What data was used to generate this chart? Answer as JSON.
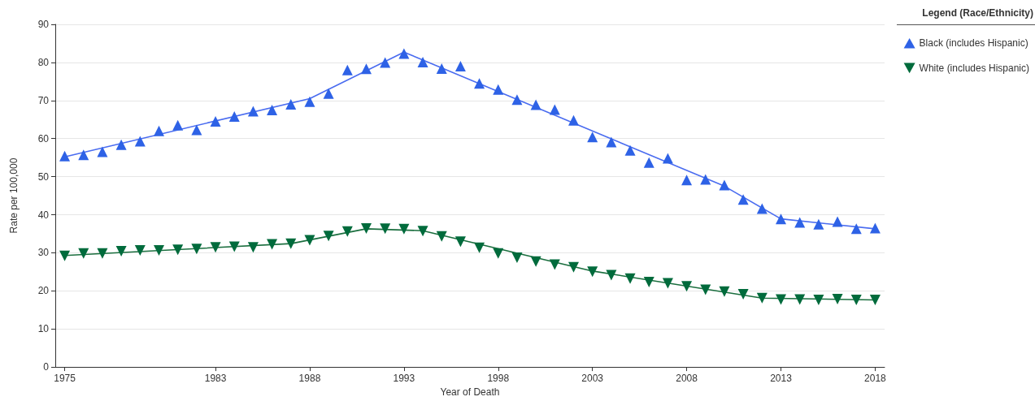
{
  "chart_data": {
    "type": "scatter",
    "xlabel": "Year of Death",
    "ylabel": "Rate per 100,000",
    "legend_title": "Legend (Race/Ethnicity)",
    "legend": "top right",
    "grid": "y",
    "x": [
      1975,
      1976,
      1977,
      1978,
      1979,
      1980,
      1981,
      1982,
      1983,
      1984,
      1985,
      1986,
      1987,
      1988,
      1989,
      1990,
      1991,
      1992,
      1993,
      1994,
      1995,
      1996,
      1997,
      1998,
      1999,
      2000,
      2001,
      2002,
      2003,
      2004,
      2005,
      2006,
      2007,
      2008,
      2009,
      2010,
      2011,
      2012,
      2013,
      2014,
      2015,
      2016,
      2017,
      2018
    ],
    "xlim": [
      1974.5,
      2018.5
    ],
    "xticks": [
      1975,
      1983,
      1988,
      1993,
      1998,
      2003,
      2008,
      2013,
      2018
    ],
    "ylim": [
      0,
      90
    ],
    "yticks": [
      0,
      10,
      20,
      30,
      40,
      50,
      60,
      70,
      80,
      90
    ],
    "series": [
      {
        "name": "Black (includes Hispanic)",
        "marker": "triangle",
        "color": "#2e62e6",
        "values": [
          55.4,
          55.7,
          56.5,
          58.4,
          59.3,
          62.0,
          63.5,
          62.3,
          64.5,
          65.8,
          67.2,
          67.5,
          69.0,
          69.7,
          71.8,
          78.0,
          78.3,
          80.0,
          82.3,
          80.1,
          78.4,
          79.0,
          74.5,
          72.9,
          70.2,
          68.9,
          67.6,
          64.8,
          60.4,
          59.1,
          56.9,
          53.7,
          54.8,
          49.1,
          49.3,
          47.8,
          44.0,
          41.6,
          38.9,
          38.0,
          37.5,
          38.2,
          36.3,
          36.5
        ]
      },
      {
        "name": "White (includes Hispanic)",
        "marker": "triangle_down",
        "color": "#006b3c",
        "values": [
          29.2,
          29.8,
          29.8,
          30.4,
          30.6,
          30.6,
          30.8,
          31.0,
          31.4,
          31.6,
          31.4,
          32.2,
          32.4,
          33.3,
          34.4,
          35.6,
          36.4,
          36.3,
          36.2,
          35.7,
          34.3,
          32.9,
          31.3,
          29.8,
          28.7,
          27.7,
          26.9,
          26.2,
          25.0,
          24.1,
          23.2,
          22.3,
          22.0,
          21.2,
          20.3,
          19.8,
          19.1,
          18.1,
          17.7,
          17.7,
          17.6,
          17.8,
          17.6,
          17.6
        ]
      },
      {
        "type": "line",
        "marker": "none",
        "line_style": "solid",
        "color": "#4a6cf0",
        "x": [
          1975,
          1988,
          1993,
          2010,
          2013,
          2018
        ],
        "values": [
          55.2,
          70.5,
          82.7,
          47.5,
          38.9,
          36.3
        ]
      },
      {
        "type": "line",
        "marker": "none",
        "line_style": "solid",
        "color": "#1a6e3e",
        "x": [
          1975,
          1987,
          1991,
          1994,
          2003,
          2012,
          2018
        ],
        "values": [
          29.3,
          32.4,
          36.3,
          35.8,
          25.2,
          18.1,
          17.6
        ]
      }
    ]
  }
}
